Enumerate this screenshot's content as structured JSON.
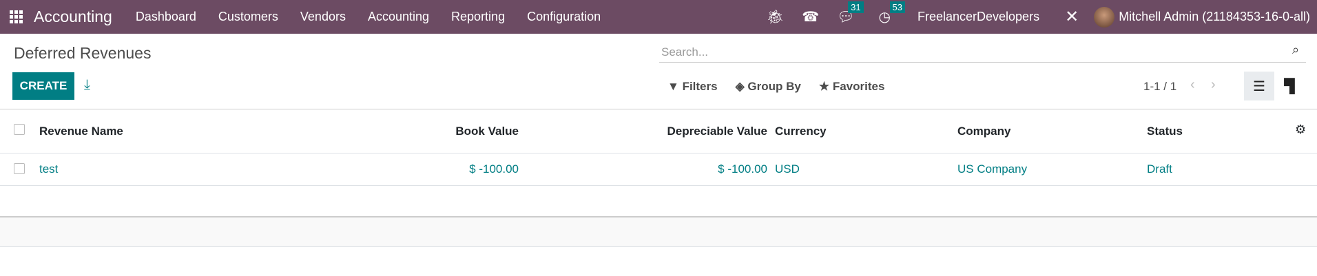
{
  "navbar": {
    "app_name": "Accounting",
    "menu": [
      "Dashboard",
      "Customers",
      "Vendors",
      "Accounting",
      "Reporting",
      "Configuration"
    ],
    "messages_count": "31",
    "activities_count": "53",
    "company": "FreelancerDevelopers",
    "user": "Mitchell Admin (21184353-16-0-all)"
  },
  "page": {
    "title": "Deferred Revenues",
    "create_label": "CREATE"
  },
  "search": {
    "placeholder": "Search..."
  },
  "filters": {
    "filters_label": "Filters",
    "group_by_label": "Group By",
    "favorites_label": "Favorites"
  },
  "pager": {
    "value": "1-1 / 1"
  },
  "table": {
    "columns": [
      "Revenue Name",
      "Book Value",
      "Depreciable Value",
      "Currency",
      "Company",
      "Status"
    ],
    "rows": [
      {
        "name": "test",
        "book_value": "$ -100.00",
        "depreciable_value": "$ -100.00",
        "currency": "USD",
        "company": "US Company",
        "status": "Draft"
      }
    ]
  },
  "colors": {
    "navbar": "#6c4b63",
    "primary": "#017e84"
  }
}
